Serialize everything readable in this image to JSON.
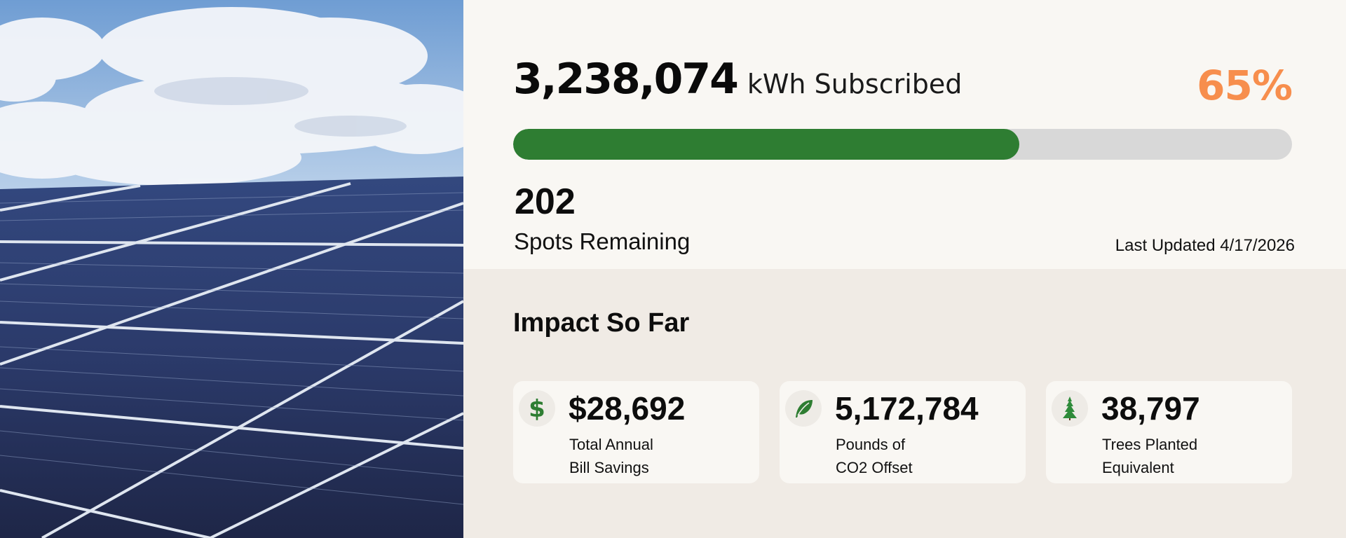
{
  "hero_image": {
    "alt": "Solar panels under a partly cloudy blue sky"
  },
  "subscription": {
    "kwh_value": "3,238,074",
    "kwh_unit_label": "kWh Subscribed",
    "percent_label": "65%",
    "percent_value": 65,
    "progress_fill_color": "#2e7d32",
    "progress_track_color": "#d8d8d8",
    "percent_color": "#f78e4d",
    "spots_remaining_value": "202",
    "spots_remaining_label": "Spots Remaining",
    "last_updated": "Last Updated 4/17/2026"
  },
  "impact": {
    "title": "Impact So Far",
    "cards": [
      {
        "icon": "dollar-icon",
        "value": "$28,692",
        "label_line1": "Total Annual",
        "label_line2": "Bill Savings"
      },
      {
        "icon": "leaf-icon",
        "value": "5,172,784",
        "label_line1": "Pounds of",
        "label_line2": "CO2 Offset"
      },
      {
        "icon": "tree-icon",
        "value": "38,797",
        "label_line1": "Trees Planted",
        "label_line2": "Equivalent"
      }
    ],
    "icon_color": "#2e7d32"
  }
}
